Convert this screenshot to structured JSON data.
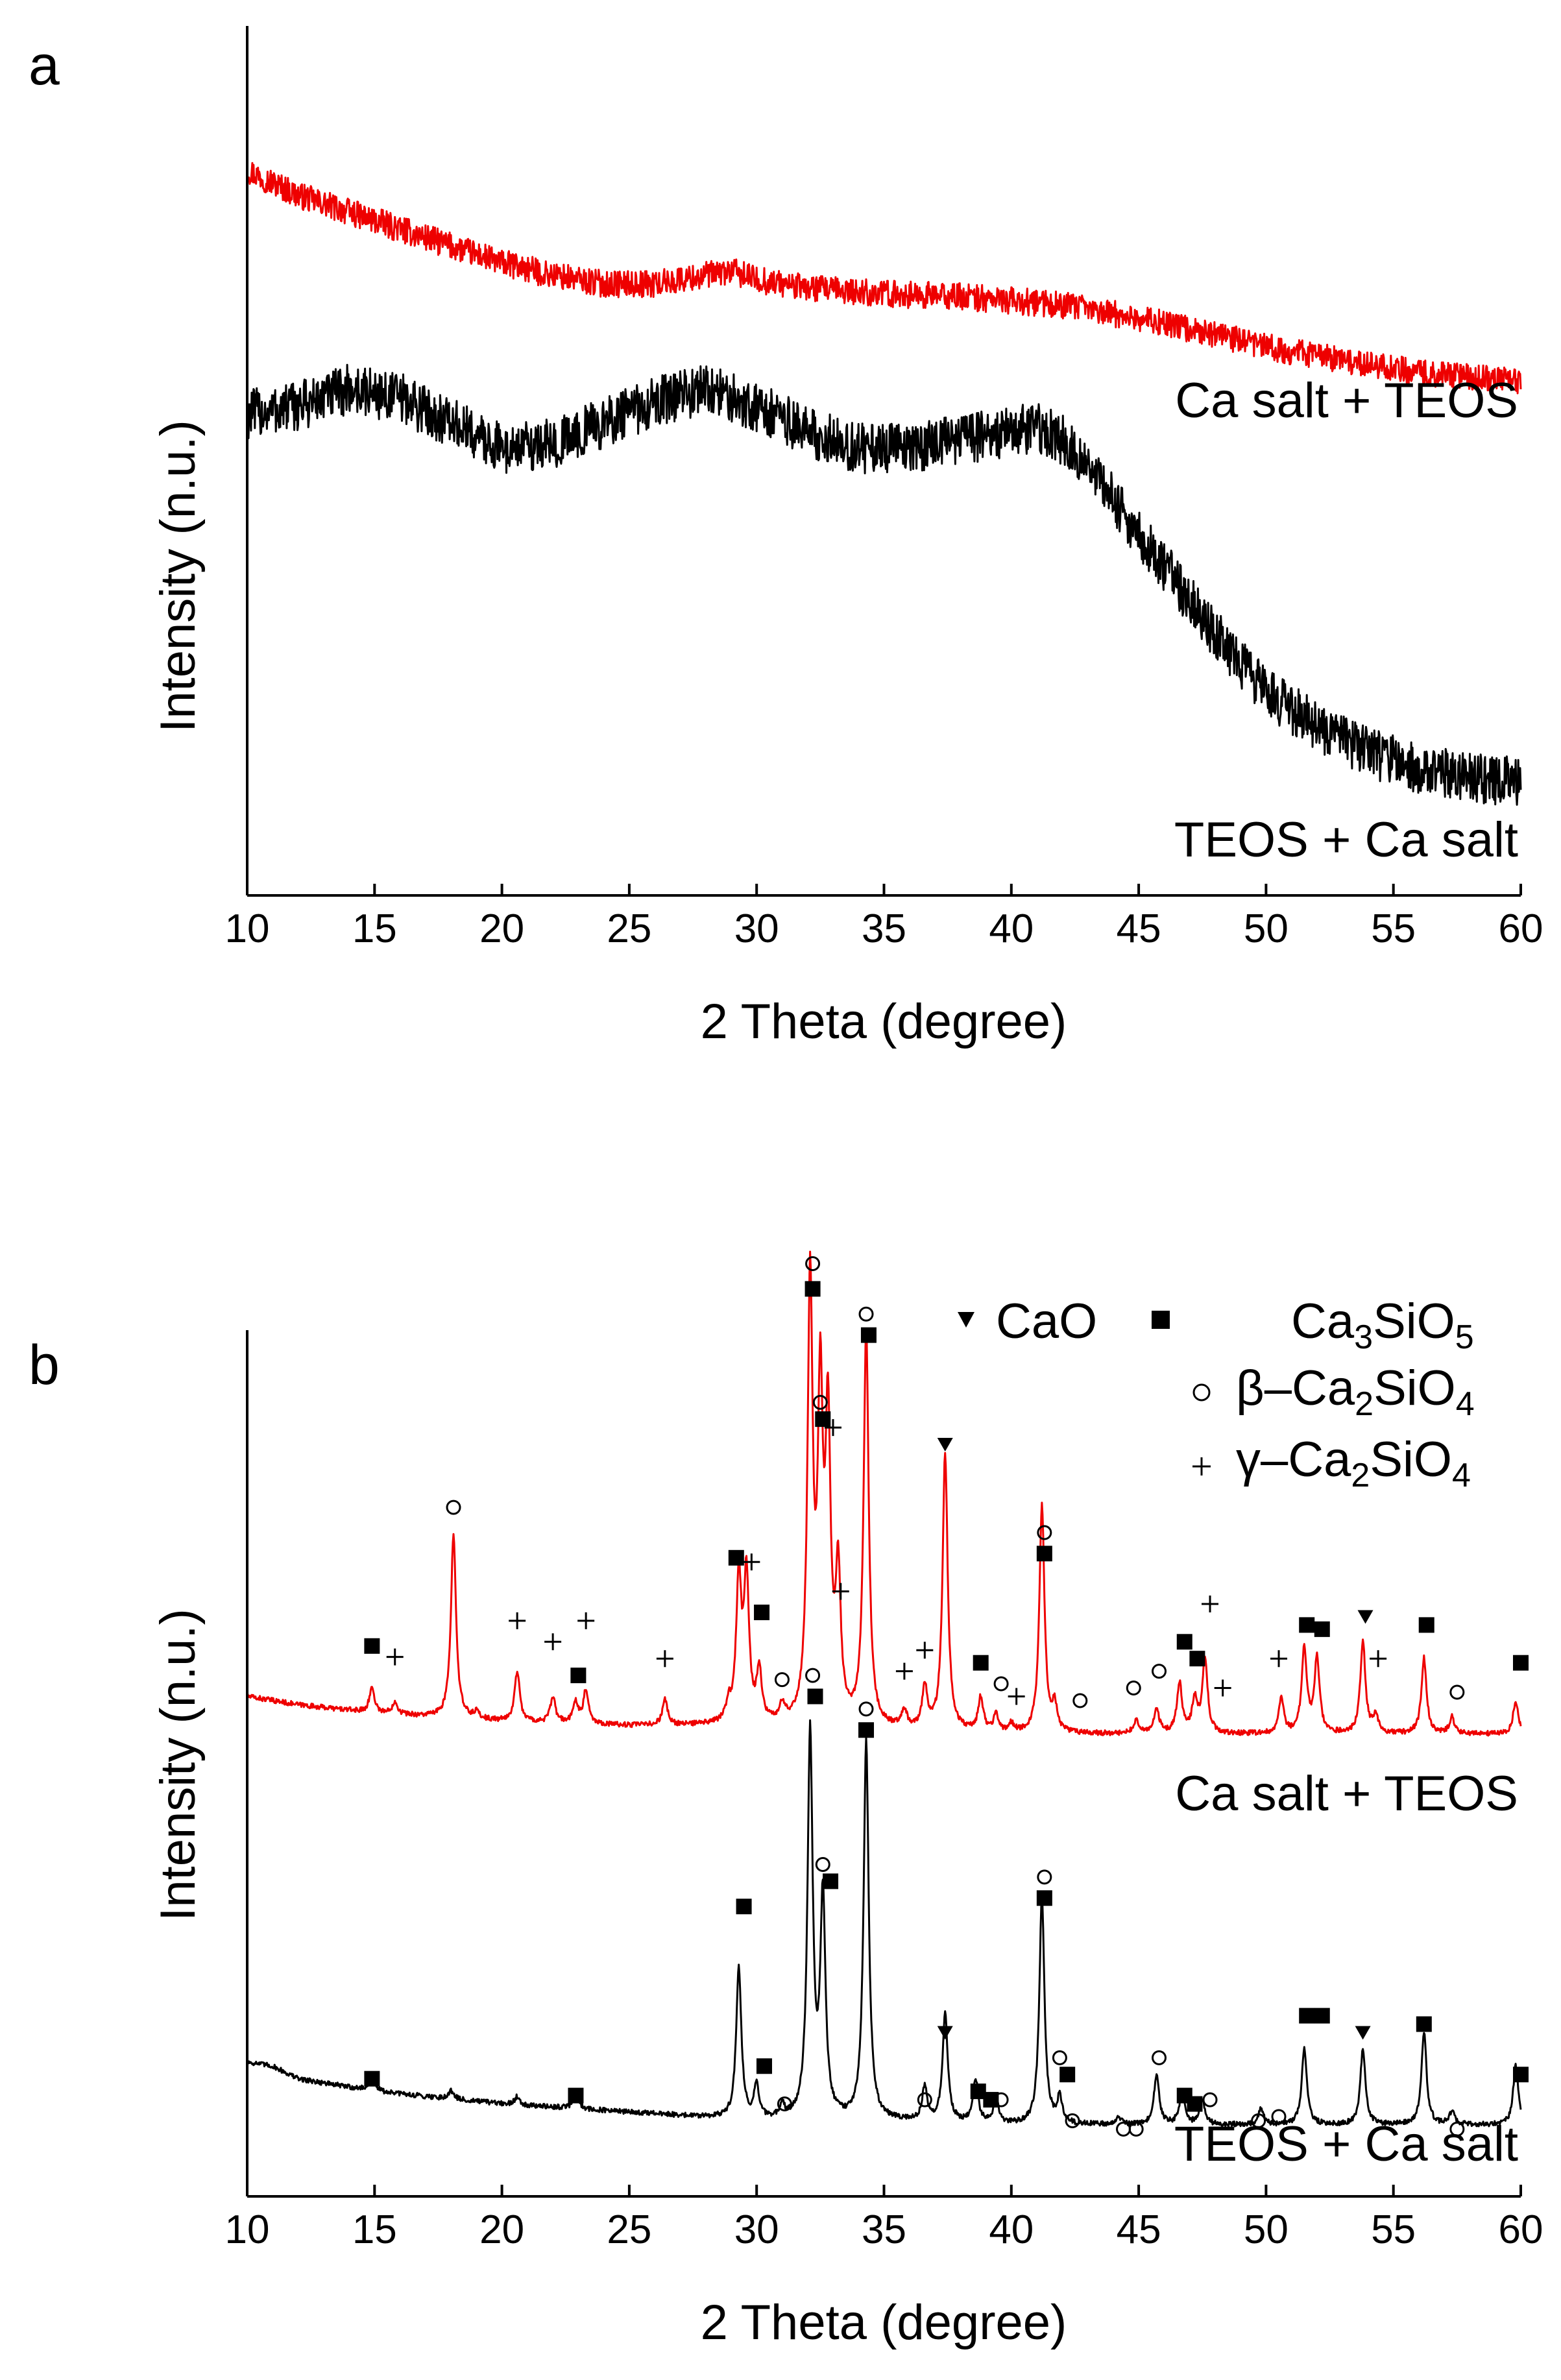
{
  "chart_data": [
    {
      "panel_label": "a",
      "type": "line",
      "xlabel": "2 Theta (degree)",
      "ylabel": "Intensity (n.u.)",
      "xlim": [
        10,
        60
      ],
      "ylim": [
        0,
        100
      ],
      "xticks": [
        10,
        15,
        20,
        25,
        30,
        35,
        40,
        45,
        50,
        55,
        60
      ],
      "yticks_shown": false,
      "grid": false,
      "series": [
        {
          "name": "Ca salt + TEOS",
          "color": "#ee0000",
          "noise": 1.6,
          "x": [
            10,
            12,
            14,
            16,
            18,
            20,
            22,
            24,
            26,
            28,
            29,
            30,
            32,
            34,
            36,
            38,
            40,
            42,
            44,
            46,
            48,
            50,
            52,
            54,
            56,
            58,
            60
          ],
          "y": [
            86,
            83,
            81,
            79,
            77,
            75,
            73.5,
            72.5,
            72.5,
            73.5,
            74,
            73,
            72,
            71.5,
            71.2,
            71,
            70.5,
            70,
            69,
            67.8,
            66.5,
            65,
            64,
            63,
            62,
            61.5,
            61
          ]
        },
        {
          "name": "TEOS + Ca salt",
          "color": "#000000",
          "noise": 3.0,
          "x": [
            10,
            12,
            14,
            16,
            18,
            20,
            22,
            24,
            26,
            28,
            30,
            32,
            34,
            36,
            38,
            40,
            41,
            42,
            43,
            44,
            45,
            46,
            47,
            48,
            50,
            52,
            54,
            56,
            58,
            60
          ],
          "y": [
            57,
            58,
            60,
            59,
            56,
            53,
            53.5,
            56,
            58.5,
            60,
            58,
            55,
            53,
            53,
            54,
            55,
            55.5,
            54,
            51,
            47,
            43,
            39,
            35,
            31,
            24,
            20,
            17,
            15,
            14,
            13.5
          ]
        }
      ],
      "annotations": [
        "Ca salt + TEOS",
        "TEOS + Ca salt"
      ]
    },
    {
      "panel_label": "b",
      "type": "line",
      "xlabel": "2 Theta (degree)",
      "ylabel": "Intensity (n.u.)",
      "xlim": [
        10,
        60
      ],
      "ylim": [
        0,
        100
      ],
      "xticks": [
        10,
        15,
        20,
        25,
        30,
        35,
        40,
        45,
        50,
        55,
        60
      ],
      "yticks_shown": false,
      "grid": false,
      "legend": {
        "placement": "top-right",
        "entries": [
          {
            "symbol": "triangle-down",
            "label": "CaO"
          },
          {
            "symbol": "square",
            "label": "Ca3SiO5"
          },
          {
            "symbol": "circle",
            "label": "β–Ca2SiO4"
          },
          {
            "symbol": "plus",
            "label": "γ–Ca2SiO4"
          }
        ]
      },
      "series": [
        {
          "name": "Ca salt + TEOS",
          "color": "#ee0000",
          "noise": 0.3,
          "baseline": {
            "x": [
              10,
              12,
              15,
              20,
              25,
              30,
              35,
              40,
              45,
              50,
              55,
              60
            ],
            "y": [
              59.5,
              58.5,
              57.5,
              56.5,
              56,
              56,
              55.5,
              55,
              55,
              55,
              55,
              55
            ]
          },
          "peaks": [
            {
              "x": 14.9,
              "h": 3
            },
            {
              "x": 15.8,
              "h": 1.5
            },
            {
              "x": 18.1,
              "h": 22
            },
            {
              "x": 19.0,
              "h": 0.8
            },
            {
              "x": 20.6,
              "h": 6
            },
            {
              "x": 22.0,
              "h": 3
            },
            {
              "x": 22.9,
              "h": 2.5
            },
            {
              "x": 23.3,
              "h": 4
            },
            {
              "x": 26.4,
              "h": 3
            },
            {
              "x": 28.9,
              "h": 2
            },
            {
              "x": 29.3,
              "h": 17
            },
            {
              "x": 29.6,
              "h": 17
            },
            {
              "x": 30.1,
              "h": 6
            },
            {
              "x": 31.0,
              "h": 2
            },
            {
              "x": 32.1,
              "h": 52
            },
            {
              "x": 32.5,
              "h": 37
            },
            {
              "x": 32.8,
              "h": 34
            },
            {
              "x": 33.2,
              "h": 17
            },
            {
              "x": 34.3,
              "h": 47
            },
            {
              "x": 35.8,
              "h": 2
            },
            {
              "x": 36.6,
              "h": 5
            },
            {
              "x": 37.4,
              "h": 33
            },
            {
              "x": 38.8,
              "h": 4
            },
            {
              "x": 39.4,
              "h": 2
            },
            {
              "x": 40.0,
              "h": 1
            },
            {
              "x": 41.2,
              "h": 27
            },
            {
              "x": 41.7,
              "h": 3
            },
            {
              "x": 44.9,
              "h": 1.5
            },
            {
              "x": 45.7,
              "h": 3
            },
            {
              "x": 46.6,
              "h": 6
            },
            {
              "x": 47.2,
              "h": 4
            },
            {
              "x": 47.6,
              "h": 9
            },
            {
              "x": 50.6,
              "h": 4
            },
            {
              "x": 51.5,
              "h": 10
            },
            {
              "x": 52.0,
              "h": 9
            },
            {
              "x": 53.8,
              "h": 11
            },
            {
              "x": 54.3,
              "h": 2
            },
            {
              "x": 56.2,
              "h": 9
            },
            {
              "x": 57.3,
              "h": 2
            },
            {
              "x": 59.8,
              "h": 4
            }
          ]
        },
        {
          "name": "TEOS + Ca salt",
          "color": "#000000",
          "noise": 0.3,
          "baseline": {
            "x": [
              10,
              11,
              12,
              15,
              20,
              25,
              30,
              35,
              40,
              45,
              50,
              55,
              58,
              60
            ],
            "y": [
              16,
              15.5,
              14,
              12.5,
              11,
              10,
              9,
              9,
              8.5,
              8.5,
              8.5,
              8.5,
              8.5,
              8.5
            ]
          },
          "peaks": [
            {
              "x": 14.9,
              "h": 2
            },
            {
              "x": 18.0,
              "h": 1
            },
            {
              "x": 20.6,
              "h": 1
            },
            {
              "x": 22.9,
              "h": 2
            },
            {
              "x": 29.3,
              "h": 18
            },
            {
              "x": 30.0,
              "h": 4
            },
            {
              "x": 31.0,
              "h": 1.5
            },
            {
              "x": 32.1,
              "h": 46
            },
            {
              "x": 32.6,
              "h": 26
            },
            {
              "x": 34.3,
              "h": 45
            },
            {
              "x": 36.6,
              "h": 4
            },
            {
              "x": 37.4,
              "h": 13
            },
            {
              "x": 38.6,
              "h": 5
            },
            {
              "x": 39.4,
              "h": 3
            },
            {
              "x": 41.2,
              "h": 27
            },
            {
              "x": 41.9,
              "h": 3
            },
            {
              "x": 44.2,
              "h": 1
            },
            {
              "x": 45.7,
              "h": 6
            },
            {
              "x": 46.7,
              "h": 4
            },
            {
              "x": 47.5,
              "h": 3
            },
            {
              "x": 49.8,
              "h": 2
            },
            {
              "x": 51.5,
              "h": 9
            },
            {
              "x": 53.8,
              "h": 9
            },
            {
              "x": 56.2,
              "h": 11
            },
            {
              "x": 57.3,
              "h": 1.5
            },
            {
              "x": 59.8,
              "h": 7
            }
          ]
        }
      ],
      "phase_markers": [
        {
          "x": 14.9,
          "y": 65.5,
          "s": "square"
        },
        {
          "x": 15.8,
          "y": 64.2,
          "s": "plus"
        },
        {
          "x": 18.1,
          "y": 82.0,
          "s": "circle"
        },
        {
          "x": 20.6,
          "y": 68.5,
          "s": "plus"
        },
        {
          "x": 22.0,
          "y": 66.0,
          "s": "plus"
        },
        {
          "x": 23.0,
          "y": 62.0,
          "s": "square"
        },
        {
          "x": 23.3,
          "y": 68.5,
          "s": "plus"
        },
        {
          "x": 26.4,
          "y": 64.0,
          "s": "plus"
        },
        {
          "x": 29.2,
          "y": 76.0,
          "s": "square"
        },
        {
          "x": 29.8,
          "y": 75.5,
          "s": "plus"
        },
        {
          "x": 30.2,
          "y": 69.5,
          "s": "square"
        },
        {
          "x": 31.0,
          "y": 61.5,
          "s": "circle"
        },
        {
          "x": 32.2,
          "y": 111.0,
          "s": "circle"
        },
        {
          "x": 32.2,
          "y": 108.0,
          "s": "square"
        },
        {
          "x": 32.5,
          "y": 94.5,
          "s": "circle"
        },
        {
          "x": 32.6,
          "y": 92.5,
          "s": "square"
        },
        {
          "x": 33.0,
          "y": 91.5,
          "s": "plus"
        },
        {
          "x": 33.3,
          "y": 72.0,
          "s": "plus"
        },
        {
          "x": 34.3,
          "y": 105.0,
          "s": "circle"
        },
        {
          "x": 34.4,
          "y": 102.5,
          "s": "square"
        },
        {
          "x": 35.8,
          "y": 62.5,
          "s": "plus"
        },
        {
          "x": 36.6,
          "y": 65.0,
          "s": "plus"
        },
        {
          "x": 37.4,
          "y": 89.5,
          "s": "triangle-down"
        },
        {
          "x": 38.8,
          "y": 63.5,
          "s": "square"
        },
        {
          "x": 39.6,
          "y": 61.0,
          "s": "circle"
        },
        {
          "x": 40.2,
          "y": 59.5,
          "s": "plus"
        },
        {
          "x": 41.3,
          "y": 79.0,
          "s": "circle"
        },
        {
          "x": 41.3,
          "y": 76.5,
          "s": "square"
        },
        {
          "x": 42.7,
          "y": 59.0,
          "s": "circle"
        },
        {
          "x": 44.8,
          "y": 60.5,
          "s": "circle"
        },
        {
          "x": 45.8,
          "y": 62.5,
          "s": "circle"
        },
        {
          "x": 46.8,
          "y": 66.0,
          "s": "square"
        },
        {
          "x": 47.3,
          "y": 64.0,
          "s": "square"
        },
        {
          "x": 47.8,
          "y": 70.5,
          "s": "plus"
        },
        {
          "x": 48.3,
          "y": 60.5,
          "s": "plus"
        },
        {
          "x": 50.5,
          "y": 64.0,
          "s": "plus"
        },
        {
          "x": 51.6,
          "y": 68.0,
          "s": "square"
        },
        {
          "x": 52.2,
          "y": 67.5,
          "s": "square"
        },
        {
          "x": 53.9,
          "y": 69.0,
          "s": "triangle-down"
        },
        {
          "x": 54.4,
          "y": 64.0,
          "s": "plus"
        },
        {
          "x": 56.3,
          "y": 68.0,
          "s": "square"
        },
        {
          "x": 57.5,
          "y": 60.0,
          "s": "circle"
        },
        {
          "x": 60.0,
          "y": 63.5,
          "s": "square"
        },
        {
          "x": 14.9,
          "y": 14.0,
          "s": "square"
        },
        {
          "x": 22.9,
          "y": 12.0,
          "s": "square"
        },
        {
          "x": 29.5,
          "y": 34.5,
          "s": "square"
        },
        {
          "x": 30.3,
          "y": 15.5,
          "s": "square"
        },
        {
          "x": 31.1,
          "y": 11.0,
          "s": "circle"
        },
        {
          "x": 32.2,
          "y": 62.0,
          "s": "circle"
        },
        {
          "x": 32.3,
          "y": 59.5,
          "s": "square"
        },
        {
          "x": 32.6,
          "y": 39.5,
          "s": "circle"
        },
        {
          "x": 32.9,
          "y": 37.5,
          "s": "square"
        },
        {
          "x": 34.3,
          "y": 58.0,
          "s": "circle"
        },
        {
          "x": 34.3,
          "y": 55.5,
          "s": "square"
        },
        {
          "x": 36.6,
          "y": 11.5,
          "s": "circle"
        },
        {
          "x": 37.4,
          "y": 19.5,
          "s": "triangle-down"
        },
        {
          "x": 38.7,
          "y": 12.5,
          "s": "square"
        },
        {
          "x": 39.2,
          "y": 11.5,
          "s": "square"
        },
        {
          "x": 39.6,
          "y": 11.5,
          "s": "circle"
        },
        {
          "x": 41.3,
          "y": 38.0,
          "s": "circle"
        },
        {
          "x": 41.3,
          "y": 35.5,
          "s": "square"
        },
        {
          "x": 41.9,
          "y": 16.5,
          "s": "circle"
        },
        {
          "x": 42.2,
          "y": 14.5,
          "s": "square"
        },
        {
          "x": 42.4,
          "y": 9.0,
          "s": "circle"
        },
        {
          "x": 44.4,
          "y": 8.0,
          "s": "circle"
        },
        {
          "x": 44.9,
          "y": 8.0,
          "s": "circle"
        },
        {
          "x": 45.8,
          "y": 16.5,
          "s": "circle"
        },
        {
          "x": 46.8,
          "y": 12.0,
          "s": "square"
        },
        {
          "x": 47.2,
          "y": 11.0,
          "s": "square"
        },
        {
          "x": 47.8,
          "y": 11.5,
          "s": "circle"
        },
        {
          "x": 49.7,
          "y": 9.0,
          "s": "circle"
        },
        {
          "x": 50.5,
          "y": 9.5,
          "s": "circle"
        },
        {
          "x": 51.6,
          "y": 21.5,
          "s": "square"
        },
        {
          "x": 52.2,
          "y": 21.5,
          "s": "square"
        },
        {
          "x": 53.8,
          "y": 19.5,
          "s": "triangle-down"
        },
        {
          "x": 56.2,
          "y": 20.5,
          "s": "square"
        },
        {
          "x": 57.5,
          "y": 8.0,
          "s": "circle"
        },
        {
          "x": 60.0,
          "y": 14.5,
          "s": "square"
        }
      ],
      "annotations": [
        "Ca salt + TEOS",
        "TEOS + Ca salt"
      ]
    }
  ],
  "legend_parts": {
    "cao": "CaO",
    "ca3sio5": {
      "base": "Ca",
      "s1": "3",
      "mid": "SiO",
      "s2": "5"
    },
    "beta": {
      "prefix": "β–Ca",
      "s1": "2",
      "mid": "SiO",
      "s2": "4"
    },
    "gamma": {
      "prefix": "γ–Ca",
      "s1": "2",
      "mid": "SiO",
      "s2": "4"
    }
  }
}
